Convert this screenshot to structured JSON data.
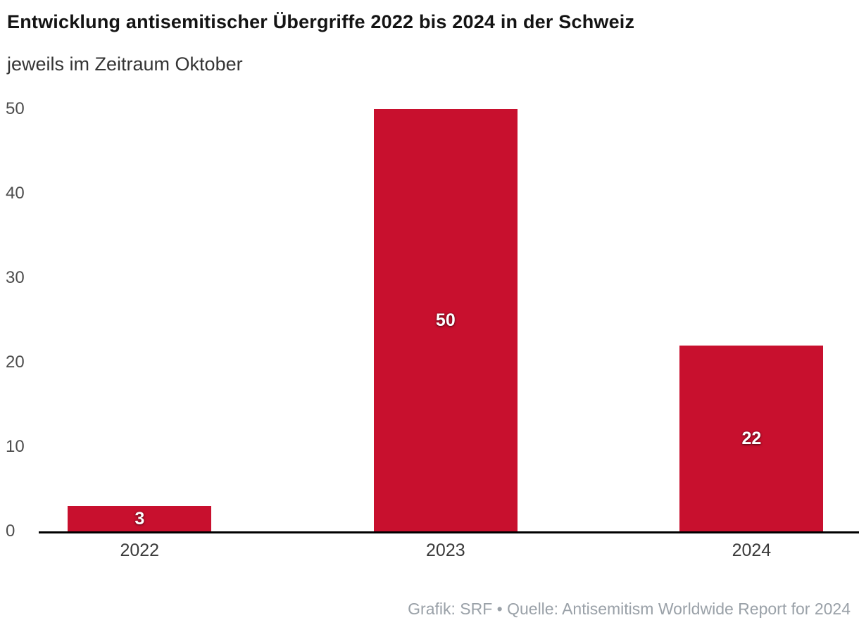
{
  "header": {
    "title": "Entwicklung antisemitischer Übergriffe 2022 bis 2024 in der Schweiz",
    "subtitle": "jeweils im Zeitraum Oktober"
  },
  "footer": {
    "credit": "Grafik: SRF • Quelle: Antisemitism Worldwide Report for 2024"
  },
  "chart_data": {
    "type": "bar",
    "title": "Entwicklung antisemitischer Übergriffe 2022 bis 2024 in der Schweiz",
    "subtitle": "jeweils im Zeitraum Oktober",
    "categories": [
      "2022",
      "2023",
      "2024"
    ],
    "values": [
      3,
      50,
      22
    ],
    "value_labels": [
      "3",
      "50",
      "22"
    ],
    "xlabel": "",
    "ylabel": "",
    "ylim": [
      0,
      50
    ],
    "yticks": [
      0,
      10,
      20,
      30,
      40,
      50
    ],
    "grid": false,
    "legend": "none",
    "bar_color": "#c8102e",
    "value_label_color": "#ffffff",
    "source": "Grafik: SRF • Quelle: Antisemitism Worldwide Report for 2024"
  }
}
